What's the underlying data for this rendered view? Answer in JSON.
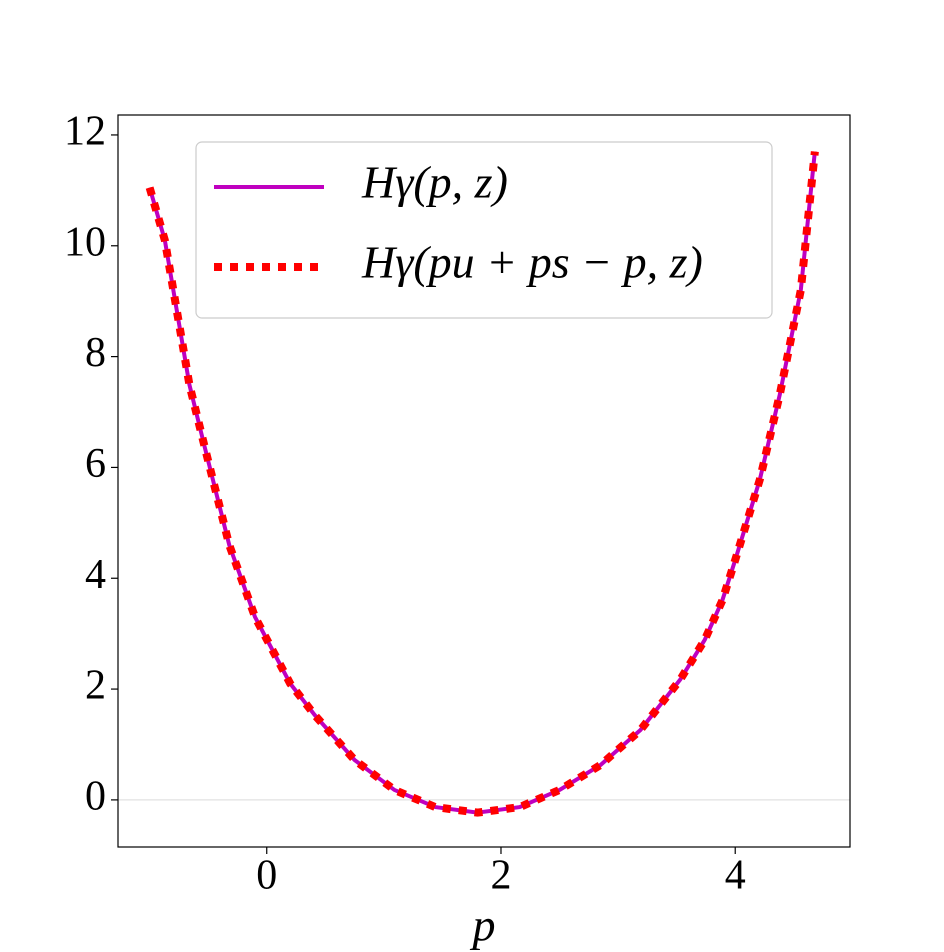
{
  "chart_data": {
    "type": "line",
    "xlabel": "p",
    "x": [
      -1.0,
      -0.87,
      -0.66,
      -0.53,
      -0.32,
      -0.1,
      0.0,
      0.2,
      0.41,
      0.75,
      1.09,
      1.44,
      1.8,
      2.16,
      2.5,
      2.85,
      3.19,
      3.53,
      3.74,
      3.89,
      4.0,
      4.21,
      4.38,
      4.56,
      4.68
    ],
    "series": [
      {
        "name": "Hγ(p, z)",
        "color": "#bf00bf",
        "style": "solid",
        "values": [
          11.05,
          10.1,
          7.49,
          6.37,
          4.6,
          3.3,
          2.9,
          2.1,
          1.53,
          0.72,
          0.18,
          -0.13,
          -0.23,
          -0.13,
          0.18,
          0.63,
          1.26,
          2.17,
          2.89,
          3.6,
          4.33,
          5.78,
          7.31,
          9.2,
          11.7
        ]
      },
      {
        "name": "Hγ(pu + ps − p, z)",
        "color": "#ff0000",
        "style": "dotted",
        "values": [
          11.05,
          10.1,
          7.49,
          6.37,
          4.6,
          3.3,
          2.9,
          2.1,
          1.53,
          0.72,
          0.18,
          -0.13,
          -0.23,
          -0.13,
          0.18,
          0.63,
          1.26,
          2.17,
          2.89,
          3.6,
          4.33,
          5.78,
          7.31,
          9.2,
          11.7
        ]
      }
    ],
    "xlim": [
      -1.27,
      4.98
    ],
    "ylim": [
      -0.85,
      12.36
    ],
    "xticks": [
      0,
      2,
      4
    ],
    "yticks": [
      0,
      2,
      4,
      6,
      8,
      10,
      12
    ],
    "hline": 0,
    "legend": "upper center"
  }
}
